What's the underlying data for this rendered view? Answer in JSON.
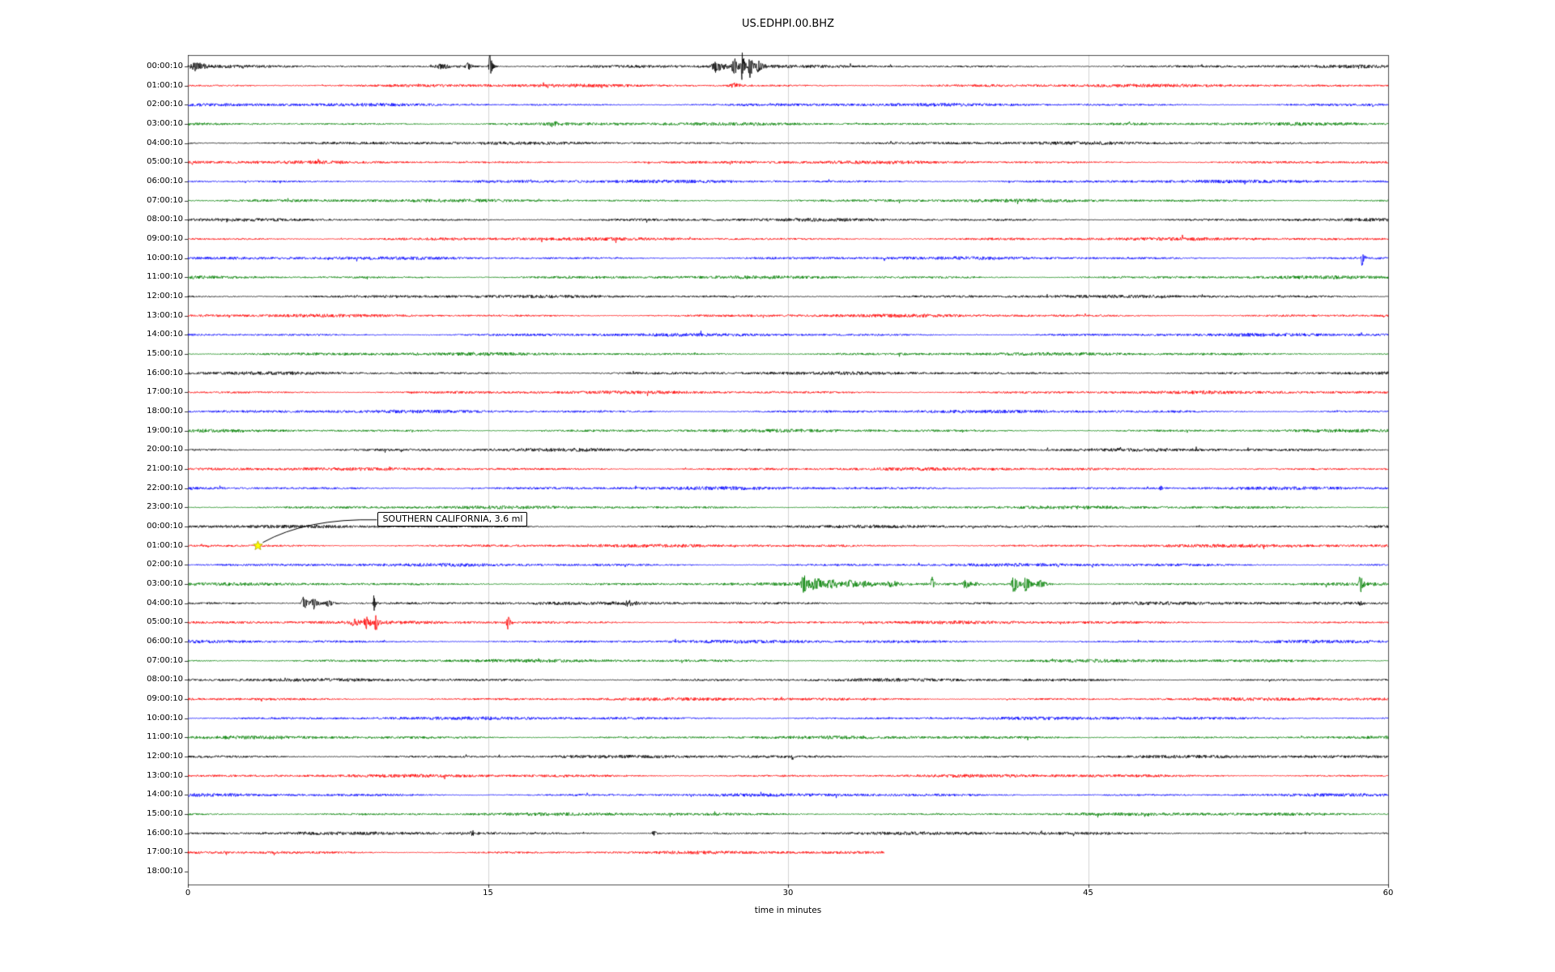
{
  "chart_data": {
    "type": "line",
    "subtype": "helicorder-seismogram",
    "title": "US.EDHPI.00.BHZ",
    "xlabel": "time in minutes",
    "xlim": [
      0,
      60
    ],
    "x_ticks": [
      0,
      15,
      30,
      45,
      60
    ],
    "background": "#ffffff",
    "grid": {
      "show": true,
      "color": "#c8c8c8",
      "x_positions": [
        15,
        30,
        45
      ]
    },
    "trace_colors": {
      "black": "#000000",
      "red": "#ff0000",
      "blue": "#0000ff",
      "green": "#008000"
    },
    "annotation": {
      "text": "SOUTHERN CALIFORNIA, 3.6 ml",
      "marker": "star",
      "marker_color": "#ffff00",
      "row_index": 25,
      "x_minutes": 3.5
    },
    "rows": [
      {
        "label": "00:00:10",
        "color": "black",
        "events": [
          {
            "x": 0.4,
            "a": 5,
            "w": 0.5
          },
          {
            "x": 12.7,
            "a": 3.5,
            "w": 0.6
          },
          {
            "x": 14.0,
            "a": 5,
            "w": 0.3
          },
          {
            "x": 15.1,
            "a": 16,
            "w": 0.12
          },
          {
            "x": 26.4,
            "a": 7,
            "w": 0.4
          },
          {
            "x": 27.3,
            "a": 14,
            "w": 0.18
          },
          {
            "x": 27.7,
            "a": 19,
            "w": 0.12
          },
          {
            "x": 28.1,
            "a": 16,
            "w": 0.14
          },
          {
            "x": 28.5,
            "a": 9,
            "w": 0.2
          }
        ]
      },
      {
        "label": "01:00:10",
        "color": "red",
        "events": [
          {
            "x": 27.3,
            "a": 3,
            "w": 0.5
          }
        ]
      },
      {
        "label": "02:00:10",
        "color": "blue",
        "events": []
      },
      {
        "label": "03:00:10",
        "color": "green",
        "events": [
          {
            "x": 18.2,
            "a": 3,
            "w": 0.4
          }
        ]
      },
      {
        "label": "04:00:10",
        "color": "black",
        "events": []
      },
      {
        "label": "05:00:10",
        "color": "red",
        "events": []
      },
      {
        "label": "06:00:10",
        "color": "blue",
        "events": []
      },
      {
        "label": "07:00:10",
        "color": "green",
        "events": []
      },
      {
        "label": "08:00:10",
        "color": "black",
        "events": []
      },
      {
        "label": "09:00:10",
        "color": "red",
        "events": []
      },
      {
        "label": "10:00:10",
        "color": "blue",
        "events": [
          {
            "x": 58.7,
            "a": 11,
            "w": 0.1
          }
        ]
      },
      {
        "label": "11:00:10",
        "color": "green",
        "events": []
      },
      {
        "label": "12:00:10",
        "color": "black",
        "events": []
      },
      {
        "label": "13:00:10",
        "color": "red",
        "events": []
      },
      {
        "label": "14:00:10",
        "color": "blue",
        "events": []
      },
      {
        "label": "15:00:10",
        "color": "green",
        "events": []
      },
      {
        "label": "16:00:10",
        "color": "black",
        "events": []
      },
      {
        "label": "17:00:10",
        "color": "red",
        "events": []
      },
      {
        "label": "18:00:10",
        "color": "blue",
        "events": []
      },
      {
        "label": "19:00:10",
        "color": "green",
        "events": []
      },
      {
        "label": "20:00:10",
        "color": "black",
        "events": []
      },
      {
        "label": "21:00:10",
        "color": "red",
        "events": []
      },
      {
        "label": "22:00:10",
        "color": "blue",
        "events": [
          {
            "x": 48.6,
            "a": 5,
            "w": 0.08
          }
        ]
      },
      {
        "label": "23:00:10",
        "color": "green",
        "events": []
      },
      {
        "label": "00:00:10",
        "color": "black",
        "events": []
      },
      {
        "label": "01:00:10",
        "color": "red",
        "events": []
      },
      {
        "label": "02:00:10",
        "color": "blue",
        "events": []
      },
      {
        "label": "03:00:10",
        "color": "green",
        "events": [
          {
            "x": 30.8,
            "a": 13,
            "w": 0.25
          },
          {
            "x": 31.4,
            "a": 8,
            "w": 0.35
          },
          {
            "x": 32.1,
            "a": 6,
            "w": 0.4
          },
          {
            "x": 33.0,
            "a": 5,
            "w": 0.45
          },
          {
            "x": 33.9,
            "a": 4,
            "w": 0.5
          },
          {
            "x": 35.2,
            "a": 3,
            "w": 0.6
          },
          {
            "x": 37.2,
            "a": 10,
            "w": 0.1
          },
          {
            "x": 38.9,
            "a": 5,
            "w": 0.35
          },
          {
            "x": 41.3,
            "a": 11,
            "w": 0.22
          },
          {
            "x": 41.9,
            "a": 9,
            "w": 0.28
          },
          {
            "x": 42.6,
            "a": 5,
            "w": 0.35
          },
          {
            "x": 58.6,
            "a": 15,
            "w": 0.12
          }
        ]
      },
      {
        "label": "04:00:10",
        "color": "black",
        "events": [
          {
            "x": 5.8,
            "a": 9,
            "w": 0.22
          },
          {
            "x": 6.3,
            "a": 7,
            "w": 0.28
          },
          {
            "x": 7.0,
            "a": 4,
            "w": 0.35
          },
          {
            "x": 9.3,
            "a": 11,
            "w": 0.08
          },
          {
            "x": 22.0,
            "a": 3,
            "w": 0.3
          },
          {
            "x": 58.6,
            "a": 4,
            "w": 0.15
          }
        ]
      },
      {
        "label": "05:00:10",
        "color": "red",
        "events": [
          {
            "x": 8.3,
            "a": 5,
            "w": 0.3
          },
          {
            "x": 8.9,
            "a": 7,
            "w": 0.22
          },
          {
            "x": 9.4,
            "a": 13,
            "w": 0.12
          },
          {
            "x": 16.0,
            "a": 11,
            "w": 0.12
          }
        ]
      },
      {
        "label": "06:00:10",
        "color": "blue",
        "events": []
      },
      {
        "label": "07:00:10",
        "color": "green",
        "events": []
      },
      {
        "label": "08:00:10",
        "color": "black",
        "events": []
      },
      {
        "label": "09:00:10",
        "color": "red",
        "events": []
      },
      {
        "label": "10:00:10",
        "color": "blue",
        "events": []
      },
      {
        "label": "11:00:10",
        "color": "green",
        "events": []
      },
      {
        "label": "12:00:10",
        "color": "black",
        "events": []
      },
      {
        "label": "13:00:10",
        "color": "red",
        "events": []
      },
      {
        "label": "14:00:10",
        "color": "blue",
        "events": []
      },
      {
        "label": "15:00:10",
        "color": "green",
        "events": []
      },
      {
        "label": "16:00:10",
        "color": "black",
        "events": [
          {
            "x": 14.2,
            "a": 3,
            "w": 0.2
          },
          {
            "x": 23.3,
            "a": 3,
            "w": 0.2
          }
        ]
      },
      {
        "label": "17:00:10",
        "color": "red",
        "end": 34.8,
        "events": []
      },
      {
        "label": "18:00:10",
        "color": "black",
        "end": 0,
        "events": []
      }
    ]
  }
}
